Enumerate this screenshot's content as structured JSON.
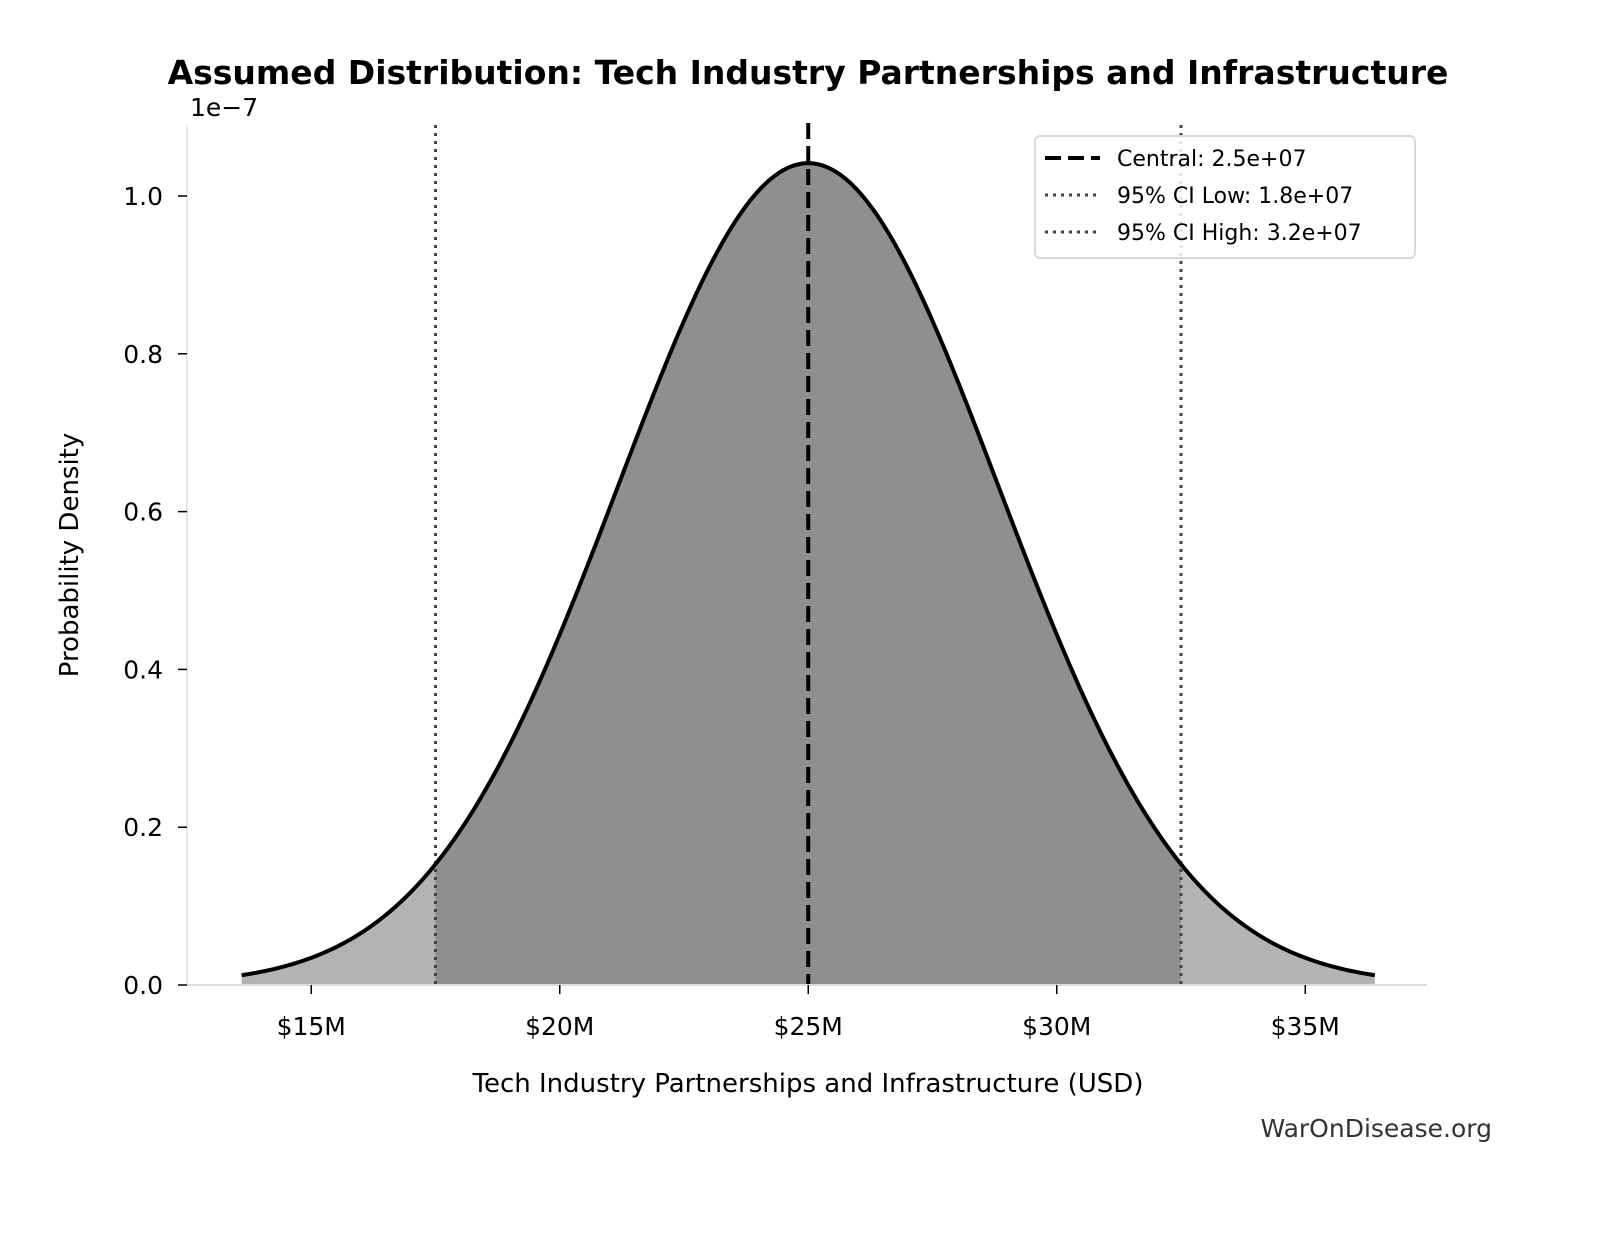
{
  "chart_data": {
    "type": "area",
    "title": "Assumed Distribution: Tech Industry Partnerships and Infrastructure",
    "xlabel": "Tech Industry Partnerships and Infrastructure (USD)",
    "ylabel": "Probability Density",
    "y_offset_label": "1e−7",
    "xlim": [
      12500000,
      37450000
    ],
    "ylim": [
      0,
      1.09e-07
    ],
    "x_ticks": [
      15000000,
      20000000,
      25000000,
      30000000,
      35000000
    ],
    "x_tick_labels": [
      "$15M",
      "$20M",
      "$25M",
      "$30M",
      "$35M"
    ],
    "y_ticks": [
      0,
      2e-08,
      4e-08,
      6e-08,
      8e-08,
      1e-07
    ],
    "y_tick_labels": [
      "0.0",
      "0.2",
      "0.4",
      "0.6",
      "0.8",
      "1.0"
    ],
    "distribution": {
      "kind": "normal",
      "mean": 25000000,
      "sd": 3830000,
      "x_range": [
        13600000,
        36400000
      ]
    },
    "central": 25000000,
    "ci_low": 17500000,
    "ci_high": 32500000,
    "legend": {
      "placement": "top-right",
      "entries": [
        {
          "label": "Central: 2.5e+07",
          "style": "dashed",
          "color": "#000000"
        },
        {
          "label": "95% CI Low: 1.8e+07",
          "style": "dotted",
          "color": "#444444"
        },
        {
          "label": "95% CI High: 3.2e+07",
          "style": "dotted",
          "color": "#444444"
        }
      ]
    },
    "colors": {
      "ci_fill": "#8f8f8f",
      "tail_fill": "#b3b3b3",
      "curve": "#000000"
    },
    "grid": false
  },
  "watermark": "WarOnDisease.org"
}
